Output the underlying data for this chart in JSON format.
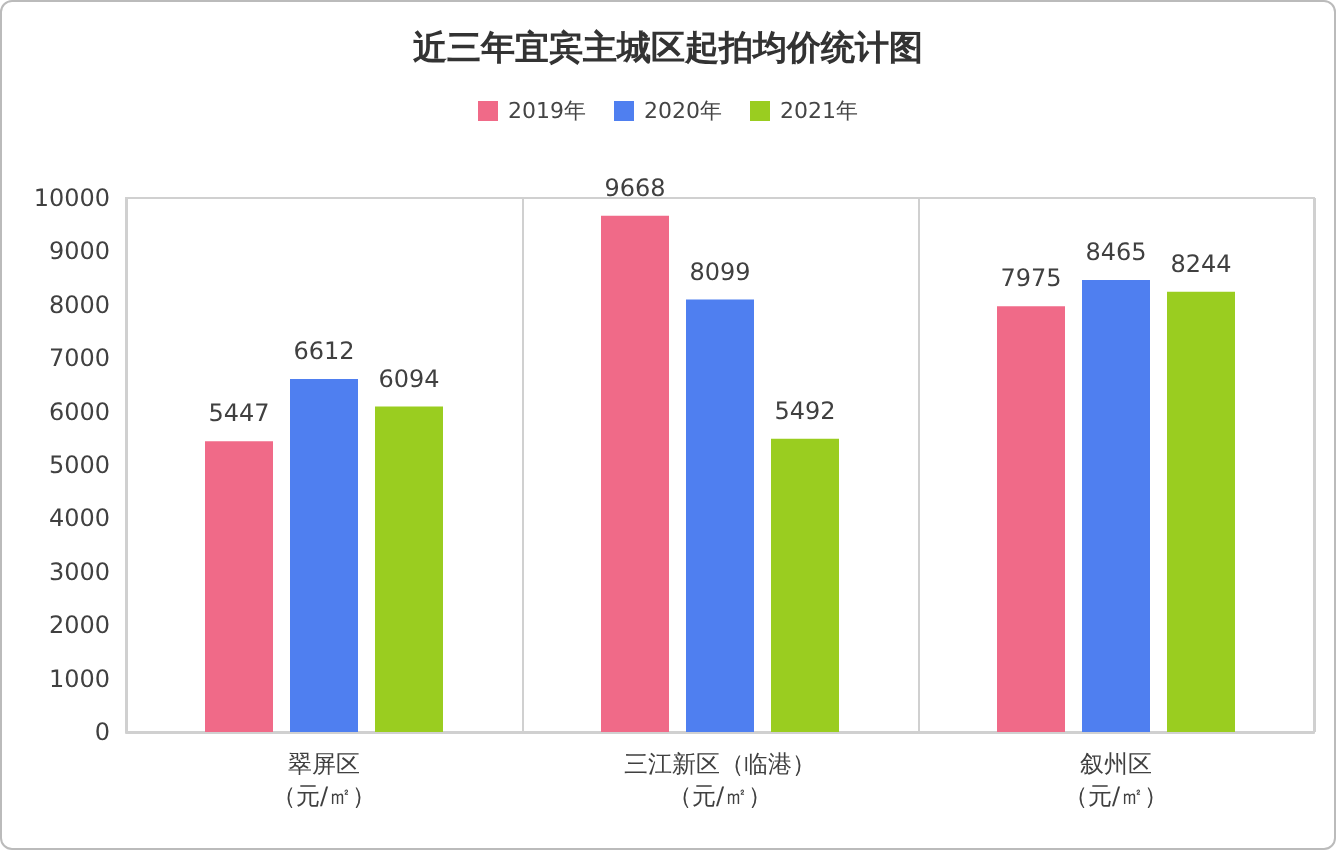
{
  "chart_data": {
    "type": "bar",
    "title": "近三年宜宾主城区起拍均价统计图",
    "categories": [
      "翠屏区（元/㎡）",
      "三江新区（临港）（元/㎡）",
      "叙州区（元/㎡）"
    ],
    "series": [
      {
        "name": "2019年",
        "color": "#f06a88",
        "values": [
          5447,
          9668,
          7975
        ]
      },
      {
        "name": "2020年",
        "color": "#4f7ff0",
        "values": [
          6612,
          8099,
          8465
        ]
      },
      {
        "name": "2021年",
        "color": "#9acd20",
        "values": [
          6094,
          5492,
          8244
        ]
      }
    ],
    "ylim": [
      0,
      10000
    ],
    "yticks": [
      0,
      1000,
      2000,
      3000,
      4000,
      5000,
      6000,
      7000,
      8000,
      9000,
      10000
    ],
    "grid": "x",
    "legend": "top",
    "data_labels": true
  }
}
